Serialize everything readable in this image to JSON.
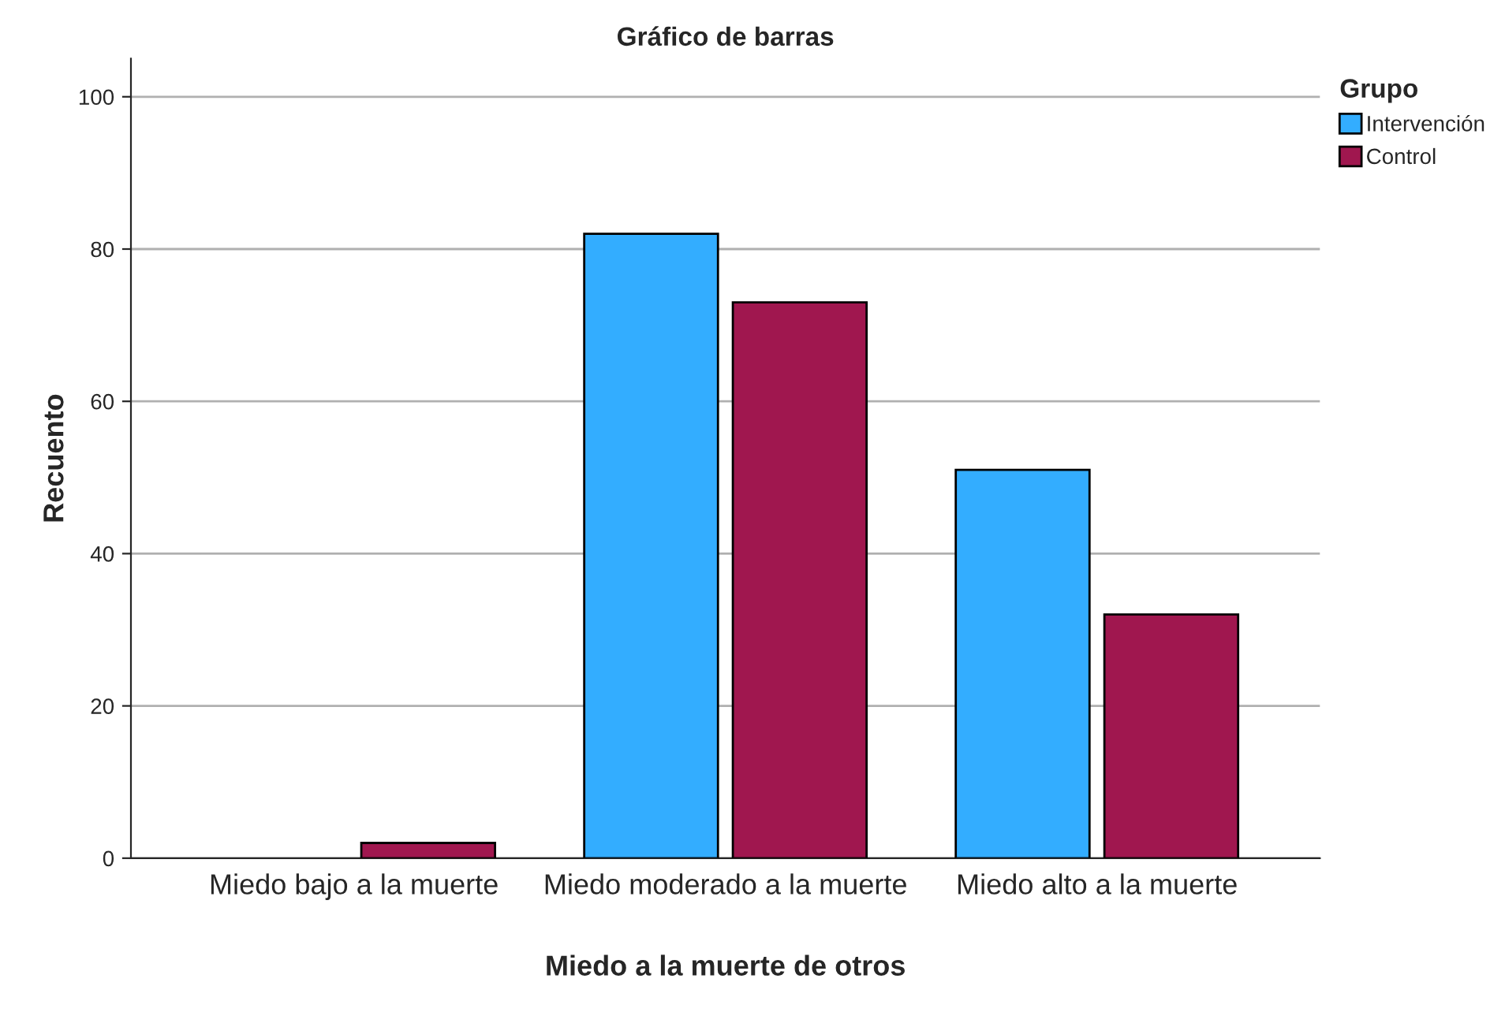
{
  "chart_data": {
    "type": "bar",
    "title": "Gráfico de barras",
    "xlabel": "Miedo a la muerte de otros",
    "ylabel": "Recuento",
    "legend_title": "Grupo",
    "categories": [
      "Miedo bajo a la muerte",
      "Miedo moderado a la muerte",
      "Miedo alto a la muerte"
    ],
    "series": [
      {
        "name": "Intervención",
        "color": "#33adff",
        "values": [
          0,
          82,
          51
        ]
      },
      {
        "name": "Control",
        "color": "#a0174f",
        "values": [
          2,
          73,
          32
        ]
      }
    ],
    "ylim": [
      0,
      105
    ],
    "yticks": [
      0,
      20,
      40,
      60,
      80,
      100
    ],
    "grid": "y",
    "legend": "top right"
  }
}
